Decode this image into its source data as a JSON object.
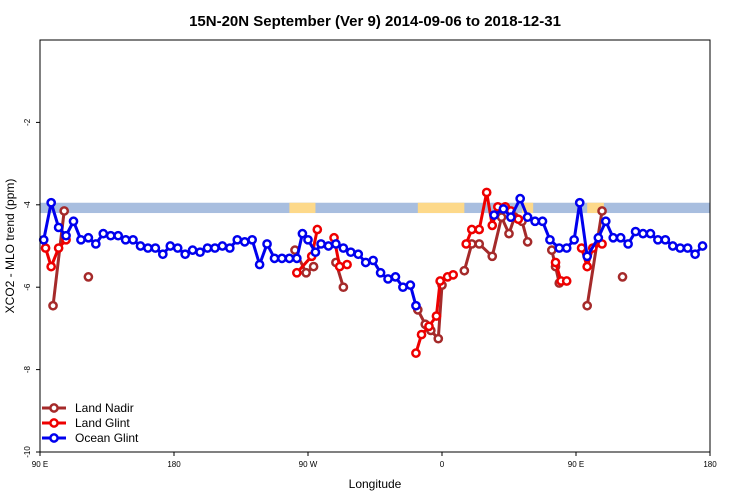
{
  "chart_data": {
    "type": "line",
    "title": "15N-20N September (Ver 9)   2014-09-06 to 2018-12-31",
    "xlabel": "Longitude",
    "ylabel": "XCO2 - MLO trend (ppm)",
    "xlim": [
      0,
      360
    ],
    "ylim": [
      -10,
      0
    ],
    "x_ticks": [
      {
        "value": 0,
        "label": "90 E"
      },
      {
        "value": 72,
        "label": "180"
      },
      {
        "value": 144,
        "label": "90 W"
      },
      {
        "value": 216,
        "label": "0"
      },
      {
        "value": 288,
        "label": "90 E"
      },
      {
        "value": 360,
        "label": "180"
      }
    ],
    "y_ticks": [
      {
        "value": -2,
        "label": "-2"
      },
      {
        "value": -4,
        "label": "-4"
      },
      {
        "value": -6,
        "label": "-6"
      },
      {
        "value": -8,
        "label": "-8"
      },
      {
        "value": -10,
        "label": "-10"
      }
    ],
    "grid": false,
    "legend_position": "bottom-left",
    "land_ocean_band": {
      "y_range": [
        -4.2,
        -3.95
      ],
      "ocean_color": "#a8bedf",
      "land_color": "#fdd98a",
      "land_segments": [
        [
          134,
          148
        ],
        [
          203,
          228
        ],
        [
          259,
          265
        ],
        [
          294,
          303
        ]
      ]
    },
    "series": [
      {
        "name": "Land Nadir",
        "color": "#a52a2a",
        "segments": [
          [
            [
              7,
              -6.45
            ],
            [
              13,
              -4.15
            ]
          ],
          [
            [
              26,
              -5.75
            ]
          ],
          [
            [
              137,
              -5.1
            ],
            [
              143,
              -5.65
            ],
            [
              147,
              -5.5
            ]
          ],
          [
            [
              159,
              -5.4
            ],
            [
              163,
              -6.0
            ]
          ],
          [
            [
              203,
              -6.55
            ],
            [
              207,
              -6.9
            ],
            [
              210,
              -7.05
            ],
            [
              214,
              -7.25
            ],
            [
              216,
              -5.95
            ]
          ],
          [
            [
              228,
              -5.6
            ],
            [
              232,
              -4.95
            ],
            [
              236,
              -4.95
            ],
            [
              243,
              -5.25
            ],
            [
              248,
              -4.3
            ],
            [
              252,
              -4.7
            ],
            [
              255,
              -4.3
            ],
            [
              259,
              -4.4
            ],
            [
              262,
              -4.9
            ]
          ],
          [
            [
              275,
              -5.1
            ],
            [
              277,
              -5.5
            ],
            [
              279,
              -5.9
            ]
          ],
          [
            [
              294,
              -6.45
            ],
            [
              302,
              -4.15
            ]
          ],
          [
            [
              313,
              -5.75
            ]
          ]
        ]
      },
      {
        "name": "Land Glint",
        "color": "#ee0000",
        "segments": [
          [
            [
              3,
              -5.05
            ],
            [
              6,
              -5.5
            ],
            [
              10,
              -5.05
            ],
            [
              14,
              -4.85
            ]
          ],
          [
            [
              138,
              -5.65
            ],
            [
              146,
              -5.25
            ],
            [
              149,
              -4.6
            ]
          ],
          [
            [
              158,
              -4.8
            ],
            [
              161,
              -5.5
            ],
            [
              165,
              -5.45
            ]
          ],
          [
            [
              202,
              -7.6
            ],
            [
              205,
              -7.15
            ],
            [
              209,
              -6.95
            ],
            [
              213,
              -6.7
            ],
            [
              215,
              -5.85
            ],
            [
              219,
              -5.75
            ],
            [
              222,
              -5.7
            ]
          ],
          [
            [
              229,
              -4.95
            ],
            [
              232,
              -4.6
            ],
            [
              236,
              -4.6
            ],
            [
              240,
              -3.7
            ],
            [
              243,
              -4.5
            ],
            [
              246,
              -4.05
            ],
            [
              250,
              -4.05
            ],
            [
              253,
              -4.15
            ],
            [
              257,
              -4.35
            ]
          ],
          [
            [
              277,
              -5.4
            ],
            [
              280,
              -5.85
            ],
            [
              283,
              -5.85
            ]
          ],
          [
            [
              291,
              -5.05
            ],
            [
              294,
              -5.5
            ],
            [
              297,
              -5.05
            ],
            [
              302,
              -4.95
            ]
          ]
        ]
      },
      {
        "name": "Ocean Glint",
        "color": "#0000ee",
        "segments": [
          [
            [
              2,
              -4.85
            ],
            [
              6,
              -3.95
            ],
            [
              10,
              -4.55
            ],
            [
              14,
              -4.75
            ],
            [
              18,
              -4.4
            ],
            [
              22,
              -4.85
            ],
            [
              26,
              -4.8
            ],
            [
              30,
              -4.95
            ],
            [
              34,
              -4.7
            ],
            [
              38,
              -4.75
            ],
            [
              42,
              -4.75
            ],
            [
              46,
              -4.85
            ],
            [
              50,
              -4.85
            ],
            [
              54,
              -5.0
            ],
            [
              58,
              -5.05
            ],
            [
              62,
              -5.05
            ],
            [
              66,
              -5.2
            ],
            [
              70,
              -5.0
            ],
            [
              74,
              -5.05
            ],
            [
              78,
              -5.2
            ],
            [
              82,
              -5.1
            ],
            [
              86,
              -5.15
            ],
            [
              90,
              -5.05
            ],
            [
              94,
              -5.05
            ],
            [
              98,
              -5.0
            ],
            [
              102,
              -5.05
            ],
            [
              106,
              -4.85
            ],
            [
              110,
              -4.9
            ],
            [
              114,
              -4.85
            ],
            [
              118,
              -5.45
            ],
            [
              122,
              -4.95
            ],
            [
              126,
              -5.3
            ],
            [
              130,
              -5.3
            ],
            [
              134,
              -5.3
            ],
            [
              138,
              -5.3
            ],
            [
              141,
              -4.7
            ],
            [
              144,
              -4.85
            ],
            [
              148,
              -5.15
            ],
            [
              151,
              -4.95
            ],
            [
              155,
              -5.0
            ],
            [
              159,
              -4.95
            ],
            [
              163,
              -5.05
            ],
            [
              167,
              -5.15
            ],
            [
              171,
              -5.2
            ],
            [
              175,
              -5.4
            ],
            [
              179,
              -5.35
            ],
            [
              183,
              -5.65
            ],
            [
              187,
              -5.8
            ],
            [
              191,
              -5.75
            ],
            [
              195,
              -6.0
            ],
            [
              199,
              -5.95
            ],
            [
              202,
              -6.45
            ]
          ],
          [
            [
              244,
              -4.25
            ],
            [
              249,
              -4.1
            ],
            [
              253,
              -4.3
            ],
            [
              258,
              -3.85
            ],
            [
              262,
              -4.3
            ],
            [
              266,
              -4.4
            ],
            [
              270,
              -4.4
            ],
            [
              274,
              -4.85
            ],
            [
              279,
              -5.05
            ],
            [
              283,
              -5.05
            ],
            [
              287,
              -4.85
            ],
            [
              290,
              -3.95
            ],
            [
              294,
              -5.25
            ],
            [
              300,
              -4.8
            ],
            [
              304,
              -4.4
            ],
            [
              308,
              -4.8
            ],
            [
              312,
              -4.8
            ],
            [
              316,
              -4.95
            ],
            [
              320,
              -4.65
            ],
            [
              324,
              -4.7
            ],
            [
              328,
              -4.7
            ],
            [
              332,
              -4.85
            ],
            [
              336,
              -4.85
            ],
            [
              340,
              -5.0
            ],
            [
              344,
              -5.05
            ],
            [
              348,
              -5.05
            ],
            [
              352,
              -5.2
            ],
            [
              356,
              -5.0
            ]
          ]
        ]
      }
    ]
  }
}
